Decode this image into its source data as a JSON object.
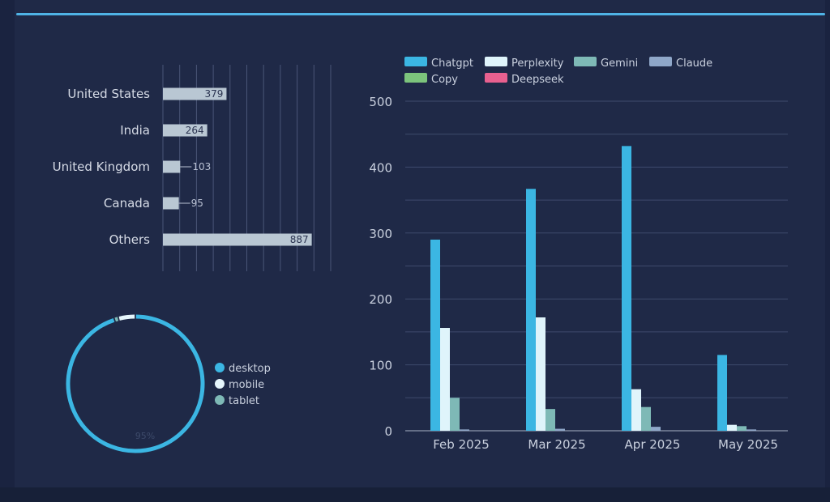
{
  "colors": {
    "chatgpt": "#3bb6e3",
    "perplexity": "#dff4fb",
    "gemini": "#7eb9b6",
    "claude": "#8fa7c9",
    "copy": "#7cc47c",
    "deepseek": "#e8608f",
    "country_bar": "#b9c7d3",
    "donut_desktop": "#3bb6e3",
    "donut_mobile": "#e6f6fc",
    "donut_tablet": "#7eb9b6"
  },
  "chart_data": [
    {
      "type": "bar",
      "orientation": "horizontal",
      "categories": [
        "United States",
        "India",
        "United Kingdom",
        "Canada",
        "Others"
      ],
      "values": [
        379,
        264,
        103,
        95,
        887
      ],
      "labels": [
        "379",
        "264",
        "103",
        "95",
        "887"
      ],
      "xlim": [
        0,
        1000
      ],
      "grid": true
    },
    {
      "type": "pie",
      "variant": "donut",
      "series": [
        {
          "name": "desktop",
          "value": 95
        },
        {
          "name": "mobile",
          "value": 4
        },
        {
          "name": "tablet",
          "value": 1
        }
      ],
      "center_label": "95%",
      "legend": "right"
    },
    {
      "type": "bar",
      "orientation": "vertical",
      "categories": [
        "Feb 2025",
        "Mar 2025",
        "Apr 2025",
        "May 2025"
      ],
      "series": [
        {
          "name": "Chatgpt",
          "values": [
            290,
            367,
            432,
            115
          ]
        },
        {
          "name": "Perplexity",
          "values": [
            156,
            172,
            63,
            9
          ]
        },
        {
          "name": "Gemini",
          "values": [
            50,
            33,
            36,
            7
          ]
        },
        {
          "name": "Claude",
          "values": [
            2,
            3,
            6,
            2
          ]
        },
        {
          "name": "Copy",
          "values": [
            0,
            0,
            0,
            0
          ]
        },
        {
          "name": "Deepseek",
          "values": [
            0,
            0,
            0,
            0
          ]
        }
      ],
      "yticks": [
        "0",
        "100",
        "200",
        "300",
        "400",
        "500"
      ],
      "ylim": [
        0,
        500
      ],
      "grid": true,
      "legend": "top"
    }
  ]
}
